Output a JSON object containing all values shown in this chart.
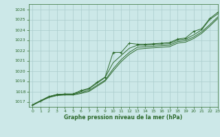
{
  "title": "Graphe pression niveau de la mer (hPa)",
  "xlim": [
    -0.5,
    23
  ],
  "ylim": [
    1016.5,
    1026.5
  ],
  "yticks": [
    1017,
    1018,
    1019,
    1020,
    1021,
    1022,
    1023,
    1024,
    1025,
    1026
  ],
  "xticks": [
    0,
    1,
    2,
    3,
    4,
    5,
    6,
    7,
    8,
    9,
    10,
    11,
    12,
    13,
    14,
    15,
    16,
    17,
    18,
    19,
    20,
    21,
    22,
    23
  ],
  "bg_color": "#cce8e8",
  "grid_color": "#aacccc",
  "line_color": "#2d6a2d",
  "line1": [
    1016.7,
    1017.1,
    1017.5,
    1017.7,
    1017.75,
    1017.75,
    1018.1,
    1018.3,
    1018.9,
    1019.4,
    1021.8,
    1021.8,
    1022.7,
    1022.6,
    1022.6,
    1022.65,
    1022.7,
    1022.75,
    1023.1,
    1023.2,
    1023.85,
    1024.1,
    1025.1,
    1025.7
  ],
  "line2": [
    1016.7,
    1017.1,
    1017.5,
    1017.7,
    1017.75,
    1017.75,
    1018.0,
    1018.25,
    1018.8,
    1019.35,
    1020.8,
    1021.5,
    1022.2,
    1022.5,
    1022.5,
    1022.55,
    1022.6,
    1022.65,
    1023.0,
    1023.1,
    1023.5,
    1024.0,
    1025.0,
    1025.55
  ],
  "line3": [
    1016.7,
    1017.1,
    1017.45,
    1017.65,
    1017.7,
    1017.7,
    1017.9,
    1018.1,
    1018.6,
    1019.1,
    1020.2,
    1021.1,
    1021.8,
    1022.3,
    1022.35,
    1022.4,
    1022.45,
    1022.5,
    1022.85,
    1022.95,
    1023.3,
    1023.8,
    1024.5,
    1025.25
  ],
  "line4": [
    1016.65,
    1017.05,
    1017.4,
    1017.6,
    1017.65,
    1017.65,
    1017.8,
    1018.0,
    1018.5,
    1019.0,
    1020.0,
    1020.9,
    1021.6,
    1022.1,
    1022.2,
    1022.25,
    1022.3,
    1022.35,
    1022.7,
    1022.8,
    1023.15,
    1023.65,
    1024.35,
    1025.1
  ],
  "figsize": [
    3.2,
    2.0
  ],
  "dpi": 100
}
